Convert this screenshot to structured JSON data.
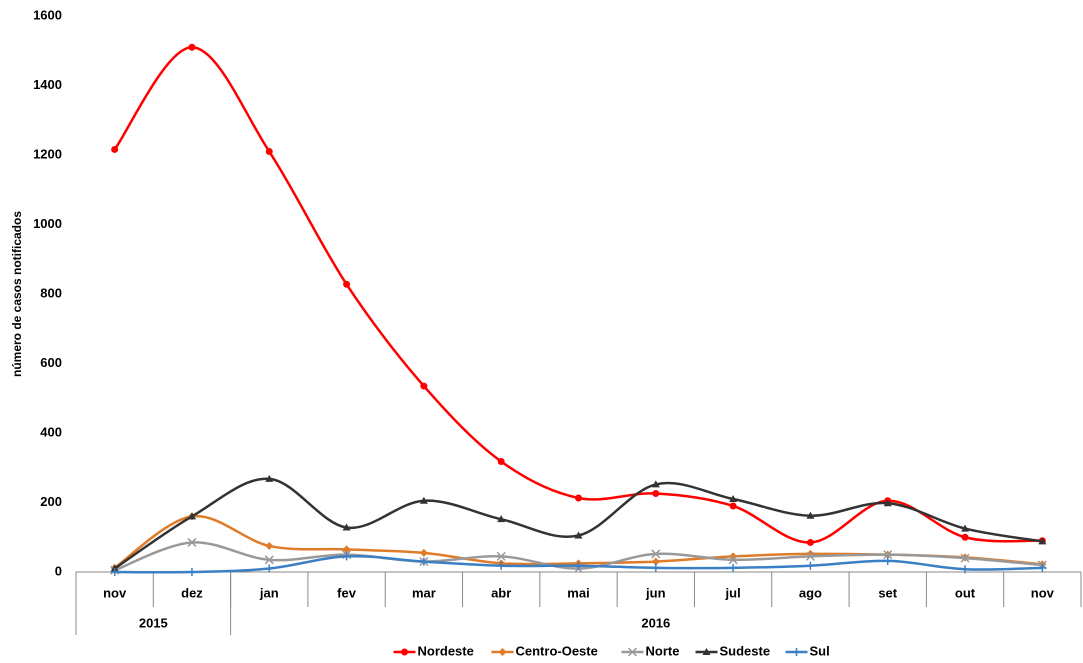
{
  "chart_data": {
    "type": "line",
    "smooth": true,
    "y_label": "número de casos notificados",
    "categories": [
      "nov",
      "dez",
      "jan",
      "fev",
      "mar",
      "abr",
      "mai",
      "jun",
      "jul",
      "ago",
      "set",
      "out",
      "nov"
    ],
    "category_groups": [
      {
        "label": "2015",
        "count": 2
      },
      {
        "label": "2016",
        "count": 11
      }
    ],
    "ylim": [
      0,
      1600
    ],
    "yticks": [
      0,
      200,
      400,
      600,
      800,
      1000,
      1200,
      1400,
      1600
    ],
    "legend": "bottom",
    "series": [
      {
        "name": "Nordeste",
        "color": "#ff0000",
        "marker": "circle",
        "values": [
          1216,
          1510,
          1210,
          828,
          535,
          318,
          213,
          226,
          190,
          85,
          205,
          100,
          90
        ]
      },
      {
        "name": "Centro-Oeste",
        "color": "#e07b28",
        "marker": "diamond",
        "values": [
          12,
          160,
          75,
          65,
          55,
          25,
          25,
          30,
          45,
          52,
          50,
          42,
          22
        ]
      },
      {
        "name": "Norte",
        "color": "#999999",
        "marker": "x",
        "values": [
          5,
          85,
          35,
          50,
          30,
          45,
          10,
          52,
          35,
          45,
          50,
          40,
          20
        ]
      },
      {
        "name": "Sudeste",
        "color": "#333333",
        "marker": "triangle",
        "values": [
          10,
          160,
          268,
          128,
          205,
          152,
          105,
          252,
          210,
          162,
          198,
          125,
          88
        ]
      },
      {
        "name": "Sul",
        "color": "#3b7fc4",
        "marker": "plus",
        "values": [
          0,
          0,
          10,
          45,
          30,
          18,
          18,
          12,
          12,
          18,
          32,
          8,
          12
        ]
      }
    ]
  }
}
